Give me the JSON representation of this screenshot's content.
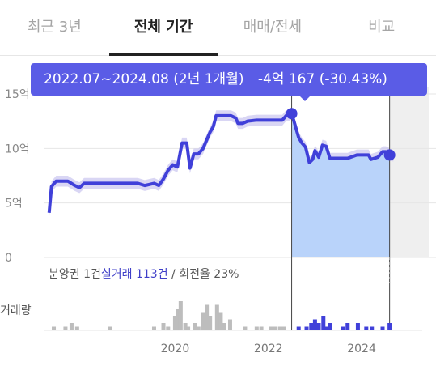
{
  "tabs": [
    {
      "label": "최근 3년",
      "active": false
    },
    {
      "label": "전체 기간",
      "active": true
    },
    {
      "label": "매매/전세",
      "active": false
    },
    {
      "label": "비교",
      "active": false
    }
  ],
  "tooltip": {
    "range": "2022.07~2024.08 (2년 1개월)",
    "change": "-4억 167 (-30.43%)"
  },
  "info": {
    "presale": "분양권 1건",
    "trades_label": "실거래",
    "trades_count": "113건",
    "turnover": " / 회전율 23%"
  },
  "volume_label": "거래량",
  "colors": {
    "accent": "#4040d9",
    "tooltip_bg": "#5a5ce6",
    "fill": "#b9d3fa",
    "band": "#c9c4ef",
    "gray_bar": "#bdbdbd"
  },
  "chart_data": {
    "type": "line",
    "y_ticks": [
      "15억",
      "10억",
      "5억",
      "0"
    ],
    "x_ticks": [
      "2020",
      "2022",
      "2024"
    ],
    "ylim": [
      0,
      15
    ],
    "xlim": [
      2017.2,
      2025.3
    ],
    "highlight_range": [
      2022.5,
      2024.6
    ],
    "series": [
      {
        "values": [
          [
            2017.3,
            4.1
          ],
          [
            2017.35,
            6.5
          ],
          [
            2017.45,
            7.0
          ],
          [
            2017.7,
            7.0
          ],
          [
            2017.85,
            6.6
          ],
          [
            2017.95,
            6.4
          ],
          [
            2018.05,
            6.8
          ],
          [
            2018.3,
            6.8
          ],
          [
            2018.6,
            6.8
          ],
          [
            2018.9,
            6.8
          ],
          [
            2019.2,
            6.8
          ],
          [
            2019.35,
            6.6
          ],
          [
            2019.45,
            6.7
          ],
          [
            2019.55,
            6.8
          ],
          [
            2019.65,
            6.6
          ],
          [
            2019.75,
            7.2
          ],
          [
            2019.85,
            8.0
          ],
          [
            2019.95,
            8.5
          ],
          [
            2020.05,
            8.3
          ],
          [
            2020.15,
            10.5
          ],
          [
            2020.25,
            10.5
          ],
          [
            2020.32,
            8.2
          ],
          [
            2020.4,
            9.5
          ],
          [
            2020.5,
            9.5
          ],
          [
            2020.6,
            10.0
          ],
          [
            2020.68,
            10.8
          ],
          [
            2020.75,
            11.5
          ],
          [
            2020.82,
            12.0
          ],
          [
            2020.88,
            13.0
          ],
          [
            2021.2,
            13.0
          ],
          [
            2021.3,
            12.8
          ],
          [
            2021.35,
            12.3
          ],
          [
            2021.45,
            12.3
          ],
          [
            2021.55,
            12.5
          ],
          [
            2021.75,
            12.6
          ],
          [
            2022.0,
            12.6
          ],
          [
            2022.2,
            12.6
          ],
          [
            2022.3,
            12.6
          ],
          [
            2022.38,
            13.0
          ],
          [
            2022.45,
            13.0
          ],
          [
            2022.5,
            13.2
          ],
          [
            2022.55,
            12.5
          ],
          [
            2022.65,
            11.0
          ],
          [
            2022.72,
            10.5
          ],
          [
            2022.8,
            10.1
          ],
          [
            2022.88,
            8.7
          ],
          [
            2022.95,
            9.0
          ],
          [
            2023.0,
            9.8
          ],
          [
            2023.08,
            9.2
          ],
          [
            2023.16,
            10.3
          ],
          [
            2023.24,
            10.2
          ],
          [
            2023.32,
            9.1
          ],
          [
            2023.5,
            9.1
          ],
          [
            2023.7,
            9.1
          ],
          [
            2023.9,
            9.4
          ],
          [
            2024.15,
            9.4
          ],
          [
            2024.2,
            9.0
          ],
          [
            2024.35,
            9.2
          ],
          [
            2024.45,
            9.7
          ],
          [
            2024.52,
            9.7
          ],
          [
            2024.58,
            9.6
          ],
          [
            2024.6,
            9.4
          ],
          [
            2024.68,
            9.3
          ]
        ]
      }
    ],
    "volume_gray": [
      [
        2017.4,
        1
      ],
      [
        2017.65,
        1
      ],
      [
        2017.78,
        2
      ],
      [
        2017.9,
        1
      ],
      [
        2018.6,
        1
      ],
      [
        2019.55,
        1
      ],
      [
        2019.75,
        2
      ],
      [
        2019.85,
        1
      ],
      [
        2020.0,
        4
      ],
      [
        2020.06,
        6
      ],
      [
        2020.12,
        8
      ],
      [
        2020.22,
        2
      ],
      [
        2020.28,
        1
      ],
      [
        2020.42,
        2
      ],
      [
        2020.5,
        1
      ],
      [
        2020.6,
        5
      ],
      [
        2020.68,
        7
      ],
      [
        2020.75,
        4
      ],
      [
        2020.9,
        7
      ],
      [
        2020.98,
        5
      ],
      [
        2021.05,
        2
      ],
      [
        2021.18,
        3
      ],
      [
        2021.5,
        1
      ],
      [
        2021.75,
        1
      ],
      [
        2021.85,
        1
      ],
      [
        2022.05,
        1
      ],
      [
        2022.15,
        1
      ],
      [
        2022.25,
        1
      ],
      [
        2022.33,
        1
      ]
    ],
    "volume_blue": [
      [
        2022.65,
        1
      ],
      [
        2022.82,
        1
      ],
      [
        2022.92,
        2
      ],
      [
        2023.0,
        3
      ],
      [
        2023.08,
        2
      ],
      [
        2023.18,
        4
      ],
      [
        2023.26,
        1
      ],
      [
        2023.33,
        2
      ],
      [
        2023.6,
        1
      ],
      [
        2023.7,
        2
      ],
      [
        2023.92,
        2
      ],
      [
        2024.1,
        1
      ],
      [
        2024.22,
        1
      ],
      [
        2024.45,
        1
      ],
      [
        2024.6,
        2
      ]
    ]
  }
}
